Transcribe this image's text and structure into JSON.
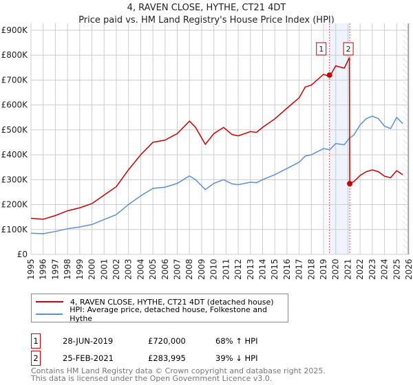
{
  "chart_data": {
    "type": "line",
    "title": "4, RAVEN CLOSE, HYTHE, CT21 4DT",
    "subtitle": "Price paid vs. HM Land Registry's House Price Index (HPI)",
    "xlim": [
      1995,
      2026
    ],
    "ylim": [
      0,
      900000
    ],
    "x_ticks": [
      "1995",
      "1996",
      "1997",
      "1998",
      "1999",
      "2000",
      "2001",
      "2002",
      "2003",
      "2004",
      "2005",
      "2006",
      "2007",
      "2008",
      "2009",
      "2010",
      "2011",
      "2012",
      "2013",
      "2014",
      "2015",
      "2016",
      "2017",
      "2018",
      "2019",
      "2020",
      "2021",
      "2022",
      "2023",
      "2024",
      "2025",
      "2026"
    ],
    "y_ticks": [
      {
        "v": 0,
        "label": "£0"
      },
      {
        "v": 100000,
        "label": "£100K"
      },
      {
        "v": 200000,
        "label": "£200K"
      },
      {
        "v": 300000,
        "label": "£300K"
      },
      {
        "v": 400000,
        "label": "£400K"
      },
      {
        "v": 500000,
        "label": "£500K"
      },
      {
        "v": 600000,
        "label": "£600K"
      },
      {
        "v": 700000,
        "label": "£700K"
      },
      {
        "v": 800000,
        "label": "£800K"
      },
      {
        "v": 900000,
        "label": "£900K"
      }
    ],
    "grid": true,
    "series": [
      {
        "name": "4, RAVEN CLOSE, HYTHE, CT21 4DT (detached house)",
        "color": "#cc0000",
        "x": [
          1995,
          1996,
          1997,
          1998,
          1999,
          2000,
          2001,
          2002,
          2003,
          2004,
          2005,
          2006,
          2007,
          2008,
          2008.5,
          2009.3,
          2010,
          2010.8,
          2011.5,
          2012,
          2013,
          2013.5,
          2014,
          2015,
          2016,
          2017,
          2017.5,
          2018,
          2019,
          2019.5,
          2020,
          2020.7,
          2021.12,
          2021.15,
          2021.5,
          2022,
          2022.5,
          2023,
          2023.5,
          2024,
          2024.5,
          2025,
          2025.5
        ],
        "y": [
          145000,
          141000,
          156000,
          175000,
          187000,
          204000,
          238000,
          272000,
          340000,
          400000,
          450000,
          459000,
          485000,
          535000,
          510000,
          442000,
          485000,
          510000,
          481000,
          476000,
          493000,
          490000,
          510000,
          544000,
          587000,
          629000,
          672000,
          680000,
          723000,
          714000,
          757000,
          748000,
          790000,
          284000,
          293000,
          317000,
          332000,
          339000,
          332000,
          314000,
          308000,
          336000,
          320000
        ]
      },
      {
        "name": "HPI: Average price, detached house, Folkestone and Hythe",
        "color": "#5b8fd4",
        "x": [
          1995,
          1996,
          1997,
          1998,
          1999,
          2000,
          2001,
          2002,
          2003,
          2004,
          2005,
          2006,
          2007,
          2008,
          2008.5,
          2009.3,
          2010,
          2010.8,
          2011.5,
          2012,
          2013,
          2013.5,
          2014,
          2015,
          2016,
          2017,
          2017.5,
          2018,
          2019,
          2019.5,
          2020,
          2020.7,
          2021.1,
          2021.5,
          2022,
          2022.5,
          2023,
          2023.5,
          2024,
          2024.5,
          2025,
          2025.5
        ],
        "y": [
          85000,
          83000,
          92000,
          103000,
          110000,
          120000,
          140000,
          160000,
          200000,
          235000,
          265000,
          270000,
          285000,
          315000,
          300000,
          260000,
          285000,
          300000,
          283000,
          280000,
          290000,
          288000,
          300000,
          320000,
          345000,
          370000,
          395000,
          400000,
          425000,
          420000,
          445000,
          440000,
          465000,
          480000,
          520000,
          545000,
          555000,
          545000,
          515000,
          505000,
          550000,
          525000
        ]
      }
    ],
    "sales": [
      {
        "id": "1",
        "x": 2019.49,
        "price": 720000,
        "date": "28-JUN-2019",
        "price_label": "£720,000",
        "hpi_label": "68% ↑ HPI"
      },
      {
        "id": "2",
        "x": 2021.15,
        "price": 283995,
        "date": "25-FEB-2021",
        "price_label": "£283,995",
        "hpi_label": "39% ↓ HPI"
      }
    ],
    "forecast_from": 2025.5
  },
  "footer": {
    "line1": "Contains HM Land Registry data © Crown copyright and database right 2025.",
    "line2": "This data is licensed under the Open Government Licence v3.0."
  }
}
